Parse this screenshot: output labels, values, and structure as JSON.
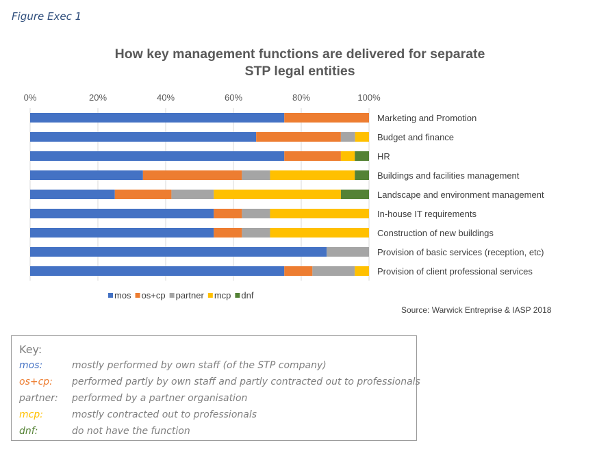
{
  "figure_label": "Figure Exec 1",
  "source": "Source: Warwick Entreprise & IASP 2018",
  "chart_data": {
    "type": "bar",
    "orientation": "horizontal",
    "stacked": true,
    "title_lines": [
      "How key management functions are delivered for separate",
      "STP legal entities"
    ],
    "xlim": [
      0,
      100
    ],
    "x_ticks": [
      "0%",
      "20%",
      "40%",
      "60%",
      "80%",
      "100%"
    ],
    "x_axis_position": "top",
    "grid": true,
    "legend_position": "bottom-left",
    "categories": [
      "Marketing and Promotion",
      "Budget and finance",
      "HR",
      "Buildings and facilities management",
      "Landscape and environment management",
      "In-house IT requirements",
      "Construction of new buildings",
      "Provision of basic services (reception, etc)",
      "Provision of client professional services"
    ],
    "series": [
      {
        "name": "mos",
        "color": "#4472c4",
        "values": [
          75,
          66.7,
          75,
          33.3,
          25,
          54.2,
          54.2,
          87.5,
          75
        ]
      },
      {
        "name": "os+cp",
        "color": "#ed7d31",
        "values": [
          25,
          25,
          16.7,
          29.2,
          16.7,
          8.3,
          8.3,
          0,
          8.3
        ]
      },
      {
        "name": "partner",
        "color": "#a5a5a5",
        "values": [
          0,
          4.2,
          0,
          8.3,
          12.5,
          8.3,
          8.3,
          12.5,
          12.5
        ]
      },
      {
        "name": "mcp",
        "color": "#ffc000",
        "values": [
          0,
          4.1,
          4.1,
          25,
          37.5,
          29.2,
          29.2,
          0,
          4.2
        ]
      },
      {
        "name": "dnf",
        "color": "#548235",
        "values": [
          0,
          0,
          4.2,
          4.2,
          8.3,
          0,
          0,
          0,
          0
        ]
      }
    ]
  },
  "key": {
    "title": "Key:",
    "items": [
      {
        "term": "mos:",
        "desc": "mostly performed by own staff (of the STP company)",
        "color": "#4472c4"
      },
      {
        "term": "os+cp:",
        "desc": "performed partly by own staff and partly contracted out to professionals",
        "color": "#ed7d31"
      },
      {
        "term": "partner:",
        "desc": "performed by a partner organisation",
        "color": "#7f7f7f"
      },
      {
        "term": "mcp:",
        "desc": "mostly contracted out to professionals",
        "color": "#ffc000"
      },
      {
        "term": "dnf:",
        "desc": "do not have the function",
        "color": "#548235"
      }
    ]
  }
}
